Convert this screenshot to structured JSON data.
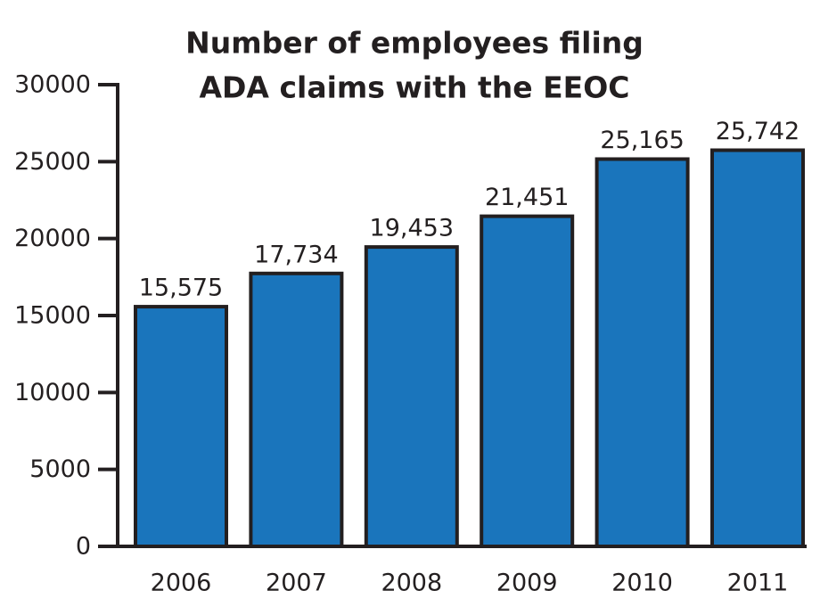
{
  "chart_data": {
    "type": "bar",
    "title": [
      "Number of employees filing",
      "ADA claims with the EEOC"
    ],
    "categories": [
      "2006",
      "2007",
      "2008",
      "2009",
      "2010",
      "2011"
    ],
    "values": [
      15575,
      17734,
      19453,
      21451,
      25165,
      25742
    ],
    "value_labels": [
      "15,575",
      "17,734",
      "19,453",
      "21,451",
      "25,165",
      "25,742"
    ],
    "color": "#1a75bc",
    "ylim": [
      0,
      30000
    ],
    "yticks": [
      0,
      5000,
      10000,
      15000,
      20000,
      25000,
      30000
    ]
  }
}
